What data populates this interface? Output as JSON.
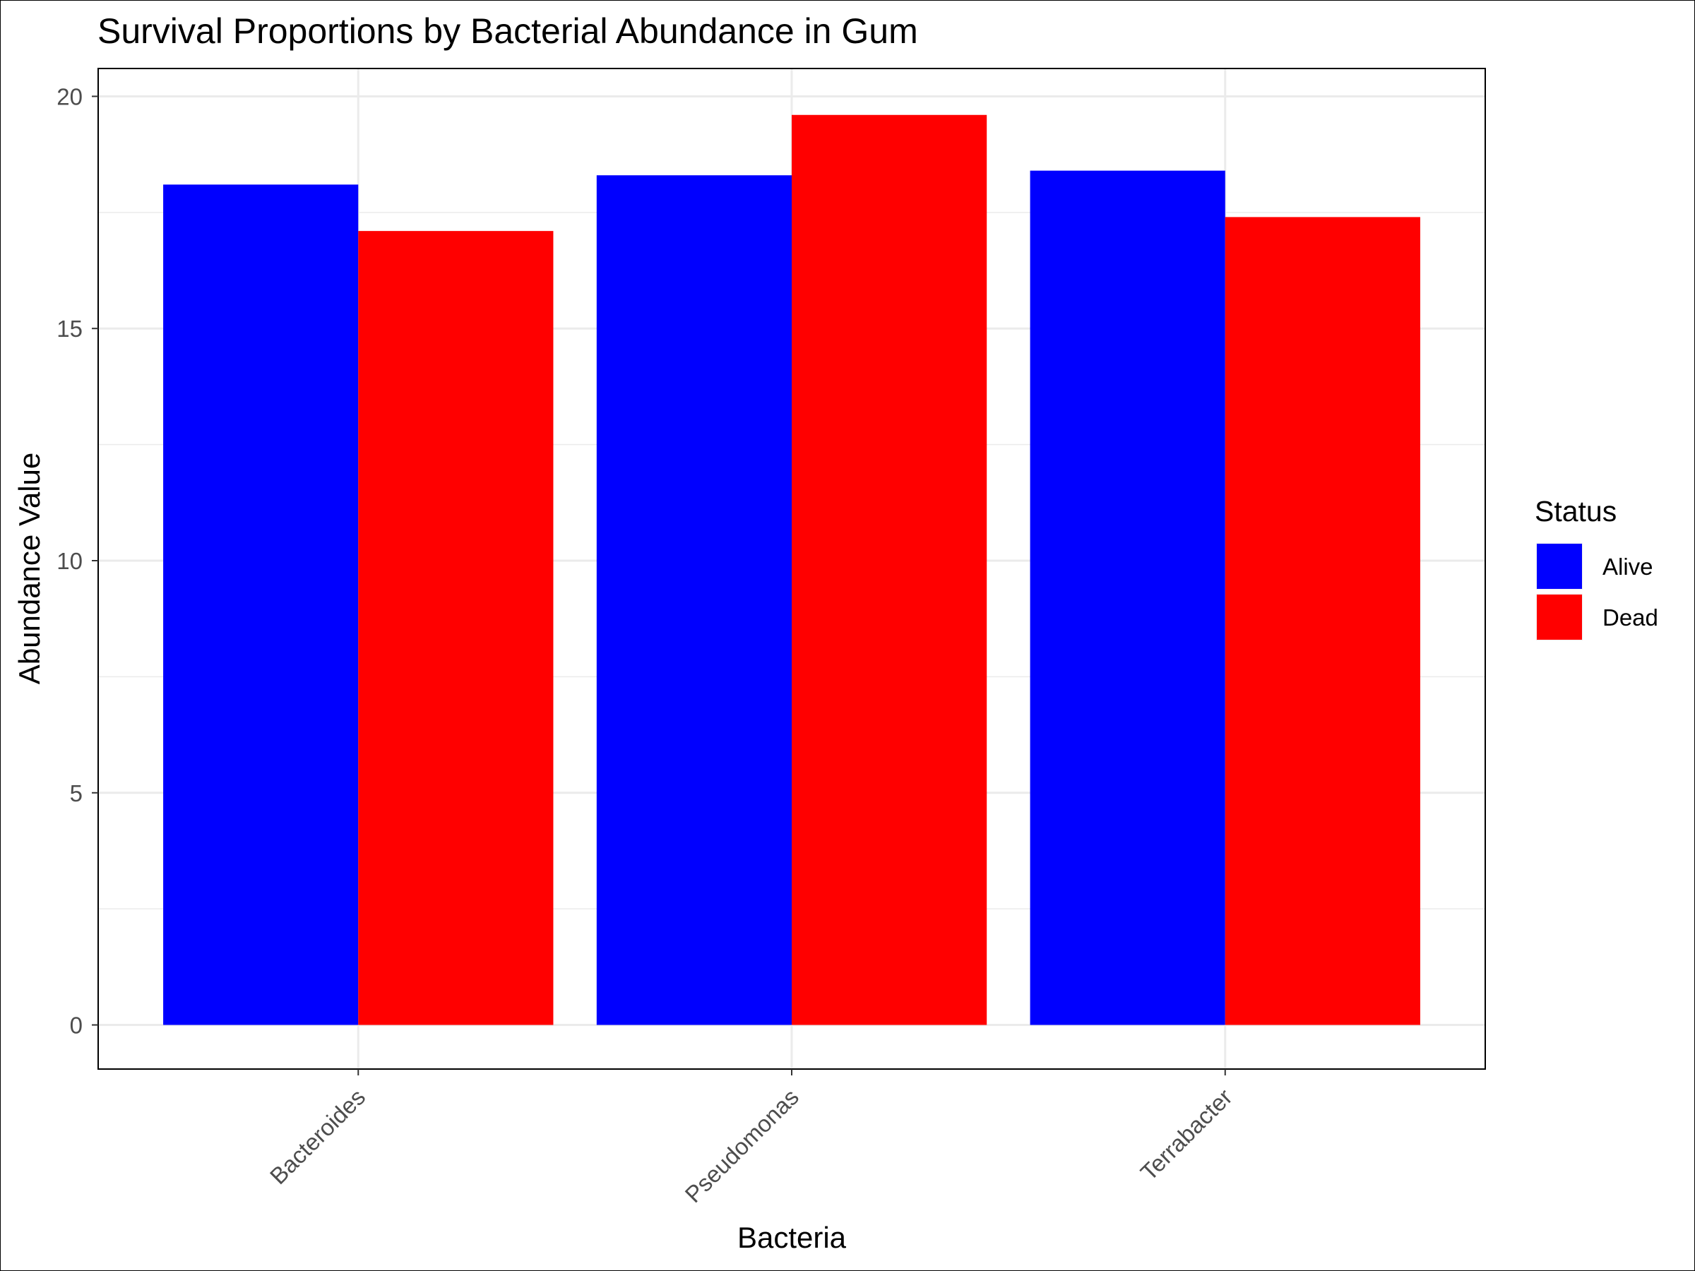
{
  "chart_data": {
    "type": "bar",
    "title": "Survival Proportions by Bacterial Abundance in Gum",
    "xlabel": "Bacteria",
    "ylabel": "Abundance Value",
    "categories": [
      "Bacteroides",
      "Pseudomonas",
      "Terrabacter"
    ],
    "series": [
      {
        "name": "Alive",
        "color": "#0000ff",
        "values": [
          18.1,
          18.3,
          18.4
        ]
      },
      {
        "name": "Dead",
        "color": "#ff0000",
        "values": [
          17.1,
          19.6,
          17.4
        ]
      }
    ],
    "ylim": [
      -0.95,
      20.6
    ],
    "yticks": [
      0,
      5,
      10,
      15,
      20
    ],
    "ytick_labels": [
      "0",
      "5",
      "10",
      "15",
      "20"
    ],
    "grid": true,
    "legend": {
      "title": "Status",
      "placement": "right",
      "entries": [
        "Alive",
        "Dead"
      ]
    }
  }
}
